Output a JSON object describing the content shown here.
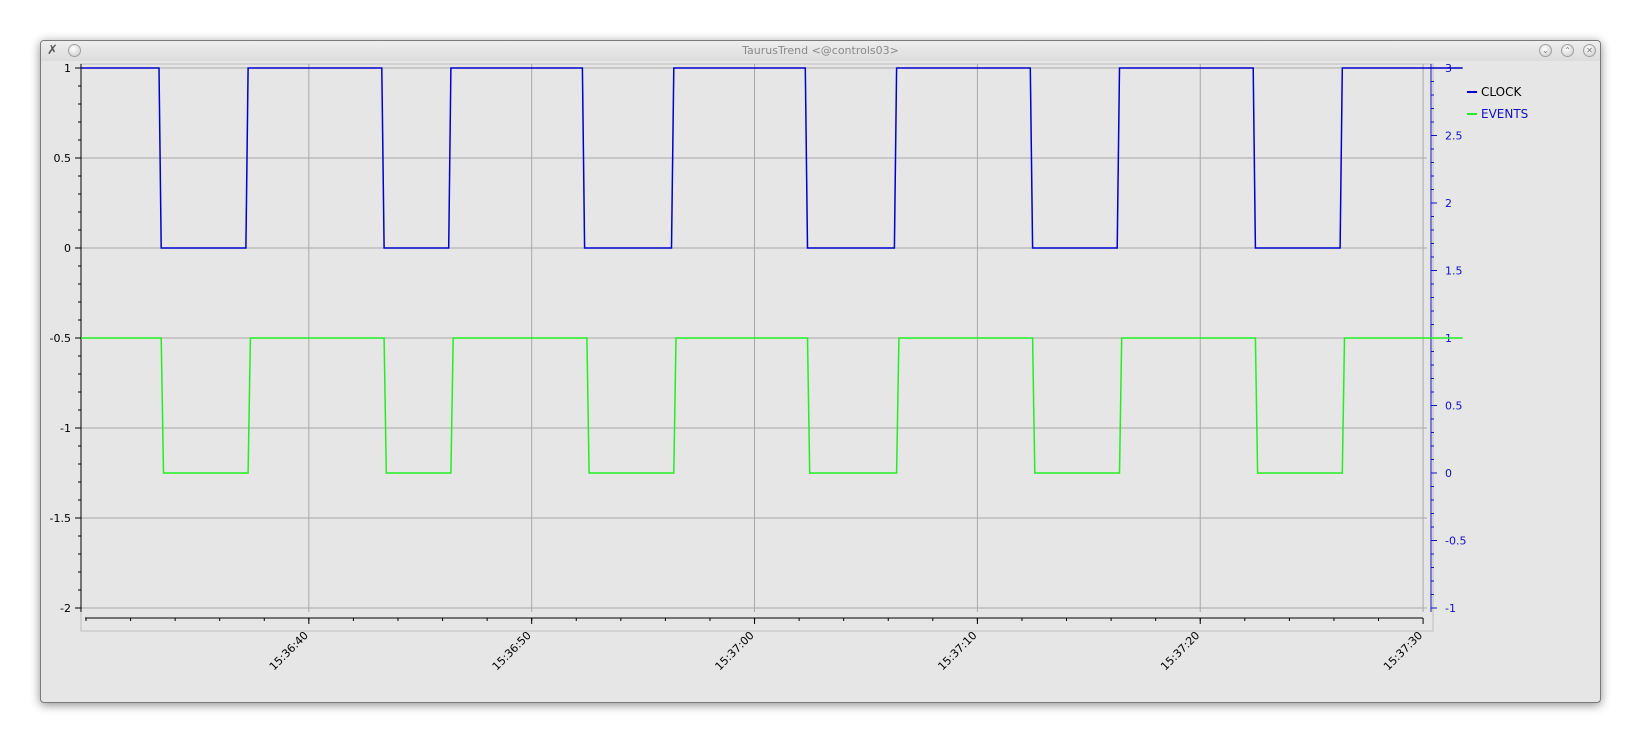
{
  "window": {
    "title": "TaurusTrend <@controls03>"
  },
  "chart_data": {
    "type": "line",
    "title": "",
    "xlabel": "",
    "ylabel": "",
    "x_ticks": [
      "15:36:40",
      "15:36:50",
      "15:37:00",
      "15:37:10",
      "15:37:20",
      "15:37:30"
    ],
    "y_left": {
      "ticks": [
        "1",
        "0.5",
        "0",
        "-0.5",
        "-1",
        "-1.5",
        "-2"
      ],
      "ylim": [
        -2,
        1
      ]
    },
    "y_right": {
      "ticks": [
        "3",
        "2.5",
        "2",
        "1.5",
        "1",
        "0.5",
        "0",
        "-0.5",
        "-1"
      ],
      "ylim": [
        -1,
        3
      ]
    },
    "grid": true,
    "legend_position": "right",
    "series": [
      {
        "name": "CLOCK",
        "axis": "left",
        "color": "#0000cc",
        "x_seconds_after_15_36_30": [
          0,
          3.5,
          3.6,
          7.4,
          7.5,
          13.5,
          13.6,
          16.5,
          16.6,
          22.5,
          22.6,
          26.5,
          26.6,
          32.5,
          32.6,
          36.5,
          36.6,
          42.6,
          42.7,
          46.5,
          46.6,
          52.6,
          52.7,
          56.5,
          56.6,
          62.0
        ],
        "y": [
          1,
          1,
          0,
          0,
          1,
          1,
          0,
          0,
          1,
          1,
          0,
          0,
          1,
          1,
          0,
          0,
          1,
          1,
          0,
          0,
          1,
          1,
          0,
          0,
          1,
          1
        ]
      },
      {
        "name": "EVENTS",
        "axis": "right",
        "color": "#22ee22",
        "x_seconds_after_15_36_30": [
          0,
          3.6,
          3.7,
          7.5,
          7.6,
          13.6,
          13.7,
          16.6,
          16.7,
          22.7,
          22.8,
          26.6,
          26.7,
          32.6,
          32.7,
          36.6,
          36.7,
          42.7,
          42.8,
          46.6,
          46.7,
          52.7,
          52.8,
          56.6,
          56.7,
          62.0
        ],
        "y": [
          1,
          1,
          0,
          0,
          1,
          1,
          0,
          0,
          1,
          1,
          0,
          0,
          1,
          1,
          0,
          0,
          1,
          1,
          0,
          0,
          1,
          1,
          0,
          0,
          1,
          1
        ]
      }
    ]
  }
}
